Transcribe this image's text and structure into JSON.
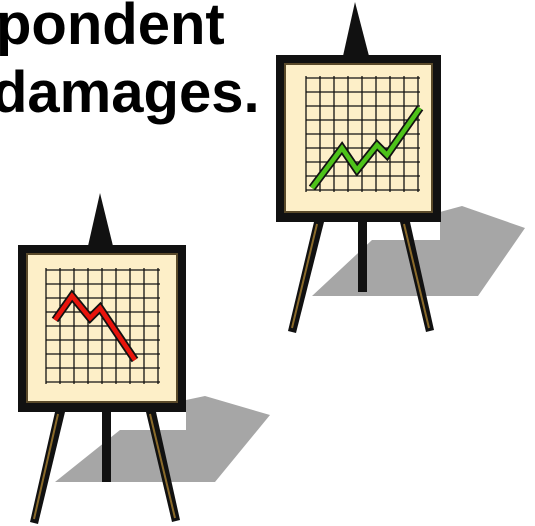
{
  "text": {
    "line1": "pondent",
    "line2": "damages."
  }
}
